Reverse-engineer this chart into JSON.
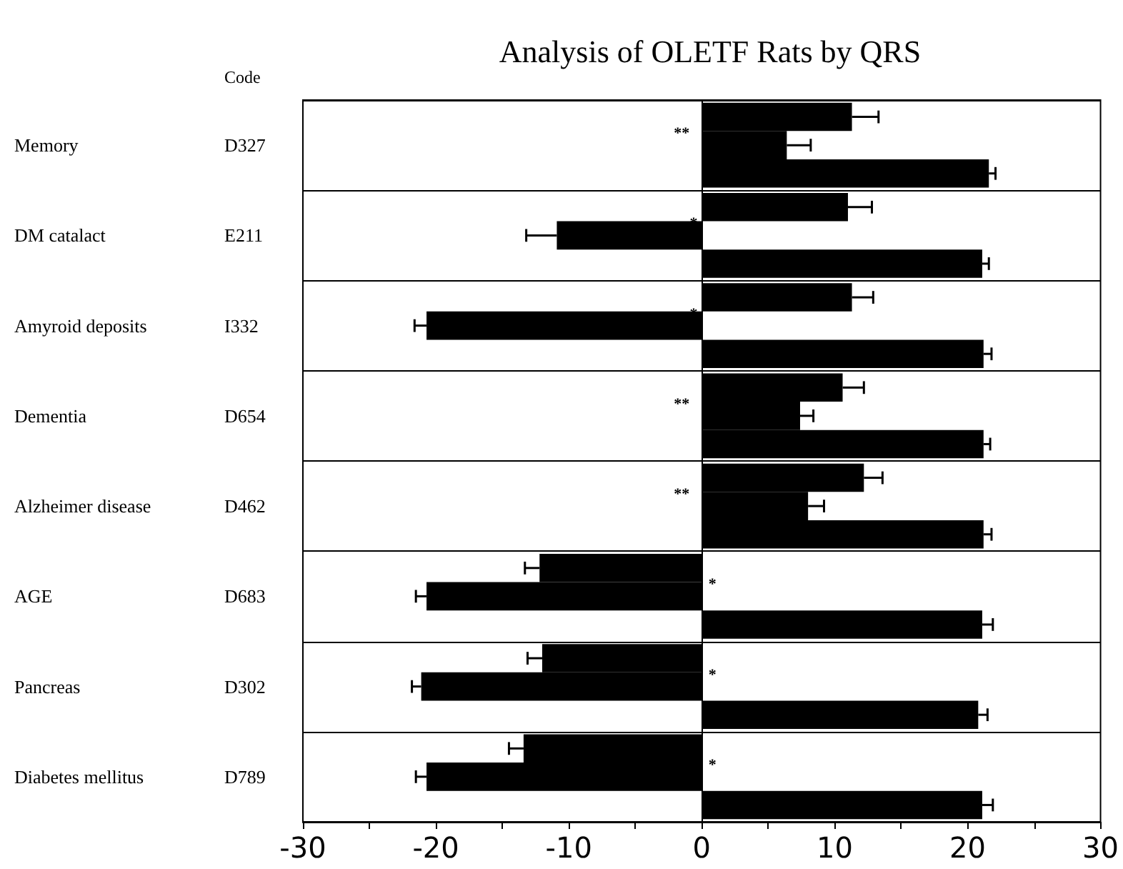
{
  "chart_data": {
    "type": "bar",
    "orientation": "horizontal",
    "title": "Analysis of OLETF Rats by QRS",
    "categories": [
      "Memory",
      "DM catalact",
      "Amyroid deposits",
      "Dementia",
      "Alzheimer disease",
      "AGE",
      "Pancreas",
      "Diabetes mellitus"
    ],
    "series": [
      {
        "color": "#000000",
        "values": [
          11.3,
          11.0,
          11.3,
          10.6,
          12.2,
          -12.2,
          -12.0,
          -13.4
        ],
        "errors": [
          [
            11.3,
            13.3
          ],
          [
            11.0,
            12.8
          ],
          [
            11.3,
            12.9
          ],
          [
            10.6,
            12.2
          ],
          [
            12.2,
            13.6
          ],
          [
            -13.3,
            -12.2
          ],
          [
            -13.1,
            -12.0
          ],
          [
            -14.5,
            -13.4
          ]
        ]
      },
      {
        "color": "#000000",
        "values": [
          6.4,
          -10.9,
          -20.7,
          7.4,
          8.0,
          -20.7,
          -21.1,
          -20.7
        ],
        "errors": [
          [
            6.4,
            8.2
          ],
          [
            -13.2,
            -10.9
          ],
          [
            -21.6,
            -20.7
          ],
          [
            7.4,
            8.4
          ],
          [
            8.0,
            9.2
          ],
          [
            -21.5,
            -20.7
          ],
          [
            -21.8,
            -21.1
          ],
          [
            -21.5,
            -20.7
          ]
        ]
      },
      {
        "color": "#000000",
        "values": [
          21.6,
          21.1,
          21.2,
          21.2,
          21.2,
          21.1,
          20.8,
          21.1
        ],
        "errors": [
          [
            21.6,
            22.1
          ],
          [
            21.1,
            21.6
          ],
          [
            21.2,
            21.8
          ],
          [
            21.2,
            21.7
          ],
          [
            21.2,
            21.8
          ],
          [
            21.1,
            21.9
          ],
          [
            20.8,
            21.5
          ],
          [
            21.1,
            21.9
          ]
        ]
      }
    ],
    "xlim": [
      -30,
      30
    ],
    "xticks": [
      -30,
      {
        "value": -25,
        "label": null
      },
      -20,
      {
        "value": -15,
        "label": null
      },
      -10,
      {
        "value": -5,
        "label": null
      },
      0,
      {
        "value": 5,
        "label": null
      },
      10,
      {
        "value": 15,
        "label": null
      },
      20,
      {
        "value": 25,
        "label": null
      },
      30
    ],
    "grid": "y",
    "ref_lines": [
      {
        "axis": "x",
        "value": 0,
        "color": "#000000"
      }
    ],
    "annotations": [
      "Code",
      "D327",
      "E211",
      "I332",
      "D654",
      "D462",
      "D683",
      "D302",
      "D789",
      "**",
      "*",
      "*",
      "**",
      "**",
      "*",
      "*",
      "*"
    ]
  }
}
